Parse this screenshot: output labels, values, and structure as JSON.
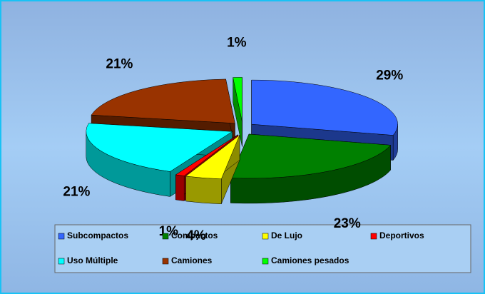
{
  "chart_data": {
    "type": "pie",
    "categories": [
      "Subcompactos",
      "Compactos",
      "De Lujo",
      "Deportivos",
      "Uso Múltiple",
      "Camiones",
      "Camiones pesados"
    ],
    "values": [
      29,
      23,
      4,
      1,
      21,
      21,
      1
    ],
    "value_labels": [
      "29%",
      "23%",
      "4%",
      "1%",
      "21%",
      "21%",
      "1%"
    ],
    "colors": [
      "#3366ff",
      "#008000",
      "#ffff00",
      "#ff0000",
      "#00ffff",
      "#993300",
      "#00ff00"
    ],
    "legend": "bottom"
  }
}
